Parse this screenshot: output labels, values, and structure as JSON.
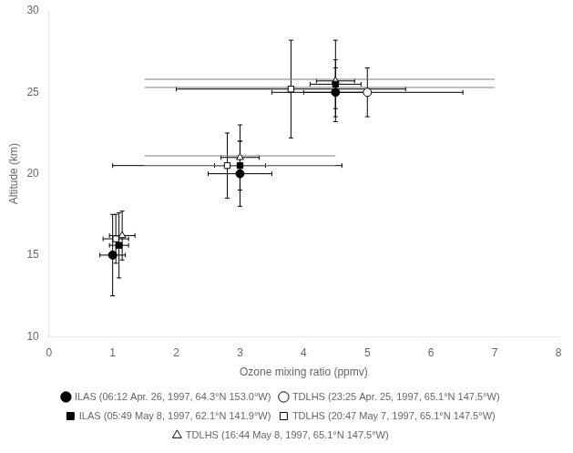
{
  "chart_data": {
    "type": "scatter",
    "xlabel": "Ozone mixing ratio (ppmv)",
    "ylabel": "Altitude (km)",
    "xlim": [
      0,
      8
    ],
    "ylim": [
      10,
      30
    ],
    "xticks": [
      0,
      1,
      2,
      3,
      4,
      5,
      6,
      7,
      8
    ],
    "yticks": [
      10,
      15,
      20,
      25,
      30
    ],
    "grid": false,
    "legend": "bottom",
    "series": [
      {
        "name": "ILAS (06:12 Apr. 26, 1997, 64.3°N 153.0°W)",
        "color": "#000000",
        "marker": "circle",
        "x": [
          1.0,
          3.0,
          4.5
        ],
        "values": [
          15.0,
          20.0,
          25.0
        ],
        "xerr": [
          0.2,
          0.5,
          0.5
        ],
        "yerr": [
          2.5,
          2.0,
          1.5
        ]
      },
      {
        "name": "TDLHS (23:25 Apr. 25, 1997, 65.1°N 147.5°W)",
        "color": "#000000",
        "marker": "open_circle",
        "x": [
          5.0
        ],
        "values": [
          25.0
        ],
        "xerr": [
          1.5
        ],
        "yerr": [
          1.5
        ]
      },
      {
        "name": "ILAS (05:49 May 8, 1997, 62.1°N 141.9°W)",
        "color": "#000000",
        "marker": "square",
        "x": [
          1.1,
          3.0,
          4.5
        ],
        "values": [
          15.6,
          20.5,
          25.5
        ],
        "xerr": [
          0.15,
          0.4,
          0.4
        ],
        "yerr": [
          2.0,
          1.5,
          1.5
        ]
      },
      {
        "name": "TDLHS (20:47 May 7, 1997, 65.1°N 147.5°W)",
        "color": "#000000",
        "marker": "open_square",
        "x": [
          1.05,
          2.8,
          3.8
        ],
        "values": [
          16.0,
          20.5,
          25.2
        ],
        "xerr": [
          0.2,
          1.8,
          1.8
        ],
        "yerr": [
          1.5,
          2.0,
          3.0
        ]
      },
      {
        "name": "TDLHS (16:44 May 8, 1997, 65.1°N 147.5°W)",
        "color": "#000000",
        "marker": "open_triangle",
        "x": [
          1.15,
          3.0,
          4.5
        ],
        "values": [
          16.2,
          21.0,
          25.7
        ],
        "xerr": [
          0.2,
          0.3,
          0.3
        ],
        "yerr": [
          1.5,
          2.0,
          2.5
        ]
      }
    ],
    "hlines": [
      {
        "y": 25.3,
        "x": [
          1.5,
          7.0
        ],
        "color": "#808080"
      },
      {
        "y": 25.8,
        "x": [
          1.5,
          7.0
        ],
        "color": "#808080"
      },
      {
        "y": 20.5,
        "x": [
          1.5,
          4.5
        ],
        "color": "#808080"
      },
      {
        "y": 21.1,
        "x": [
          1.5,
          4.5
        ],
        "color": "#808080"
      }
    ]
  }
}
